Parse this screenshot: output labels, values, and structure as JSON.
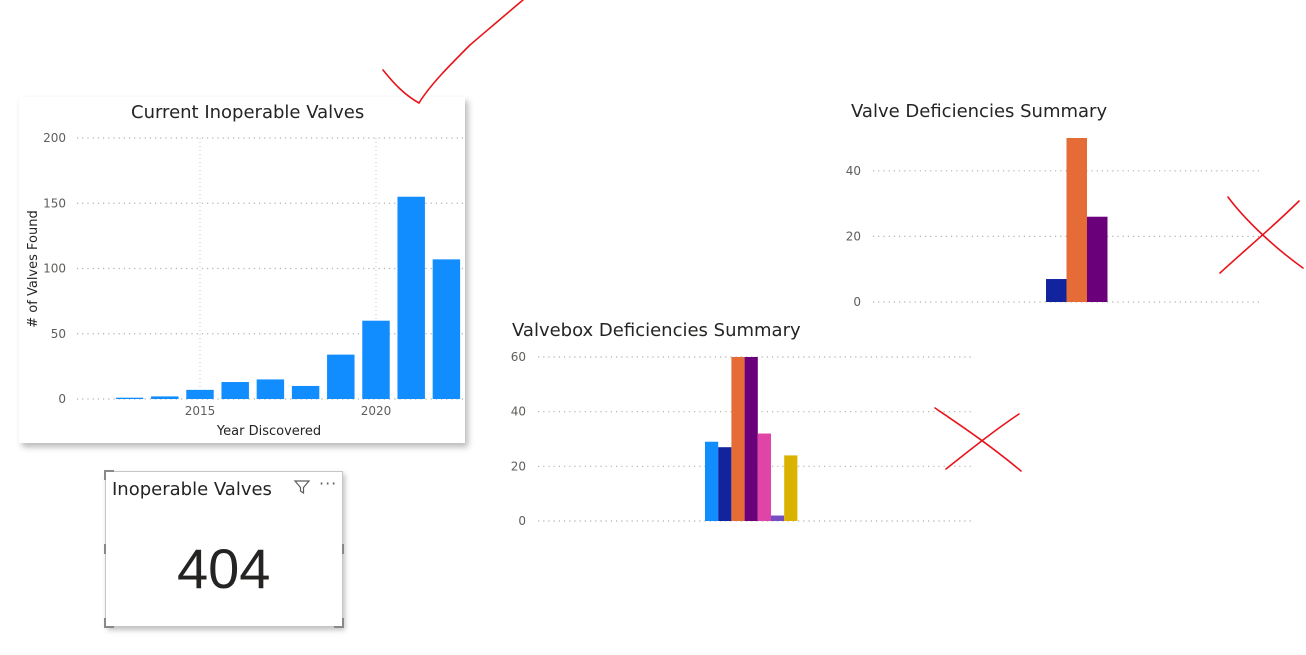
{
  "inoperable_chart": {
    "title": "Current Inoperable Valves",
    "xlabel": "Year Discovered",
    "ylabel": "# of Valves Found",
    "x_ticks": [
      {
        "label": "2015",
        "year": 2015
      },
      {
        "label": "2020",
        "year": 2020
      }
    ],
    "y_ticks": [
      "0",
      "50",
      "100",
      "150",
      "200"
    ]
  },
  "valve_summary": {
    "title": "Valve Deficiencies Summary",
    "y_ticks": [
      "0",
      "20",
      "40"
    ]
  },
  "valvebox_summary": {
    "title": "Valvebox Deficiencies Summary",
    "y_ticks": [
      "0",
      "20",
      "40",
      "60"
    ]
  },
  "kpi": {
    "title": "Inoperable Valves",
    "value": "404",
    "filter_icon": "filter-icon",
    "more_icon": "more-options-icon"
  },
  "colors": {
    "bar_blue": "#118dff",
    "navy": "#12239e",
    "orange": "#e66c37",
    "purple": "#6b007b",
    "pink": "#e044a7",
    "violet": "#744ec2",
    "gold": "#d9b300",
    "annotation_red": "#e8141b"
  },
  "chart_data": [
    {
      "type": "bar",
      "title": "Current Inoperable Valves",
      "xlabel": "Year Discovered",
      "ylabel": "# of Valves Found",
      "x": [
        2013,
        2014,
        2015,
        2016,
        2017,
        2018,
        2019,
        2020,
        2021,
        2022
      ],
      "values": [
        1,
        2,
        7,
        13,
        15,
        10,
        34,
        60,
        155,
        107
      ],
      "ylim": [
        0,
        200
      ],
      "grid": true
    },
    {
      "type": "bar",
      "title": "Valve Deficiencies Summary",
      "series": [
        {
          "value": 7,
          "color": "#12239e"
        },
        {
          "value": 50,
          "color": "#e66c37"
        },
        {
          "value": 26,
          "color": "#6b007b"
        }
      ],
      "ylim": [
        0,
        50
      ],
      "grid": true
    },
    {
      "type": "bar",
      "title": "Valvebox Deficiencies Summary",
      "series": [
        {
          "value": 29,
          "color": "#118dff"
        },
        {
          "value": 27,
          "color": "#12239e"
        },
        {
          "value": 60,
          "color": "#e66c37"
        },
        {
          "value": 60,
          "color": "#6b007b"
        },
        {
          "value": 32,
          "color": "#e044a7"
        },
        {
          "value": 2,
          "color": "#744ec2"
        },
        {
          "value": 24,
          "color": "#d9b300"
        }
      ],
      "ylim": [
        0,
        60
      ],
      "grid": true
    }
  ]
}
